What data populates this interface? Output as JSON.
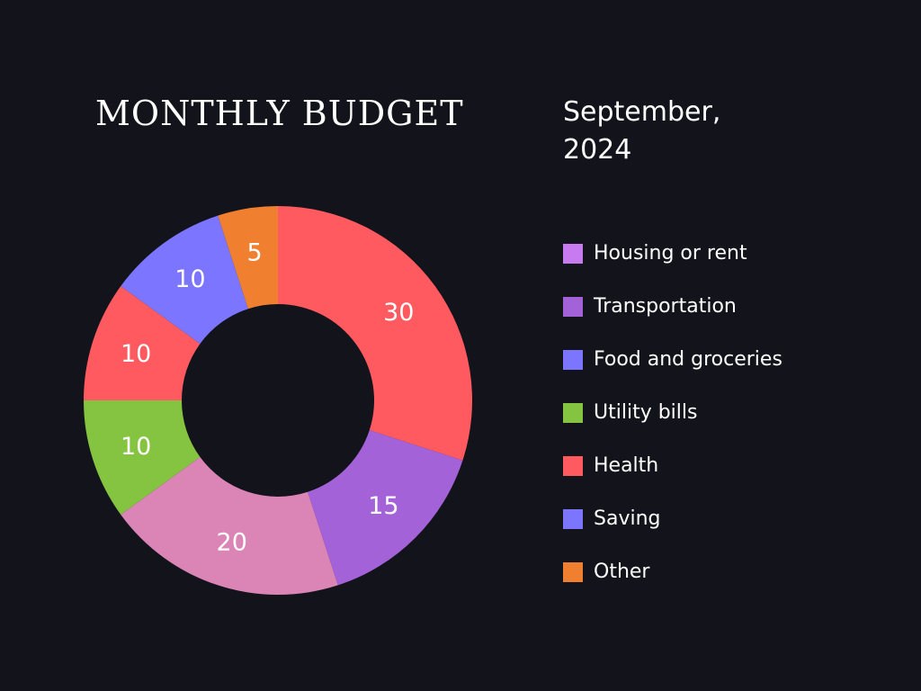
{
  "header": {
    "title": "MONTHLY BUDGET",
    "subtitle": "September, 2024"
  },
  "chart_data": {
    "type": "pie",
    "style": "donut",
    "title": "MONTHLY BUDGET",
    "subtitle": "September, 2024",
    "legend_position": "right",
    "slices": [
      {
        "label": "",
        "value": 30,
        "color": "#ff5a5f"
      },
      {
        "label": "",
        "value": 15,
        "color": "#a462d8"
      },
      {
        "label": "",
        "value": 20,
        "color": "#db85b6"
      },
      {
        "label": "",
        "value": 10,
        "color": "#84c441"
      },
      {
        "label": "",
        "value": 10,
        "color": "#ff5a5f"
      },
      {
        "label": "",
        "value": 10,
        "color": "#7b75ff"
      },
      {
        "label": "",
        "value": 5,
        "color": "#f0802f"
      }
    ],
    "legend": [
      {
        "label": "Housing or rent",
        "color": "#c87af0"
      },
      {
        "label": "Transportation",
        "color": "#a462d8"
      },
      {
        "label": "Food and groceries",
        "color": "#7b75ff"
      },
      {
        "label": "Utility bills",
        "color": "#84c441"
      },
      {
        "label": "Health",
        "color": "#ff5a5f"
      },
      {
        "label": "Saving",
        "color": "#7b75ff"
      },
      {
        "label": "Other",
        "color": "#f0802f"
      }
    ]
  }
}
